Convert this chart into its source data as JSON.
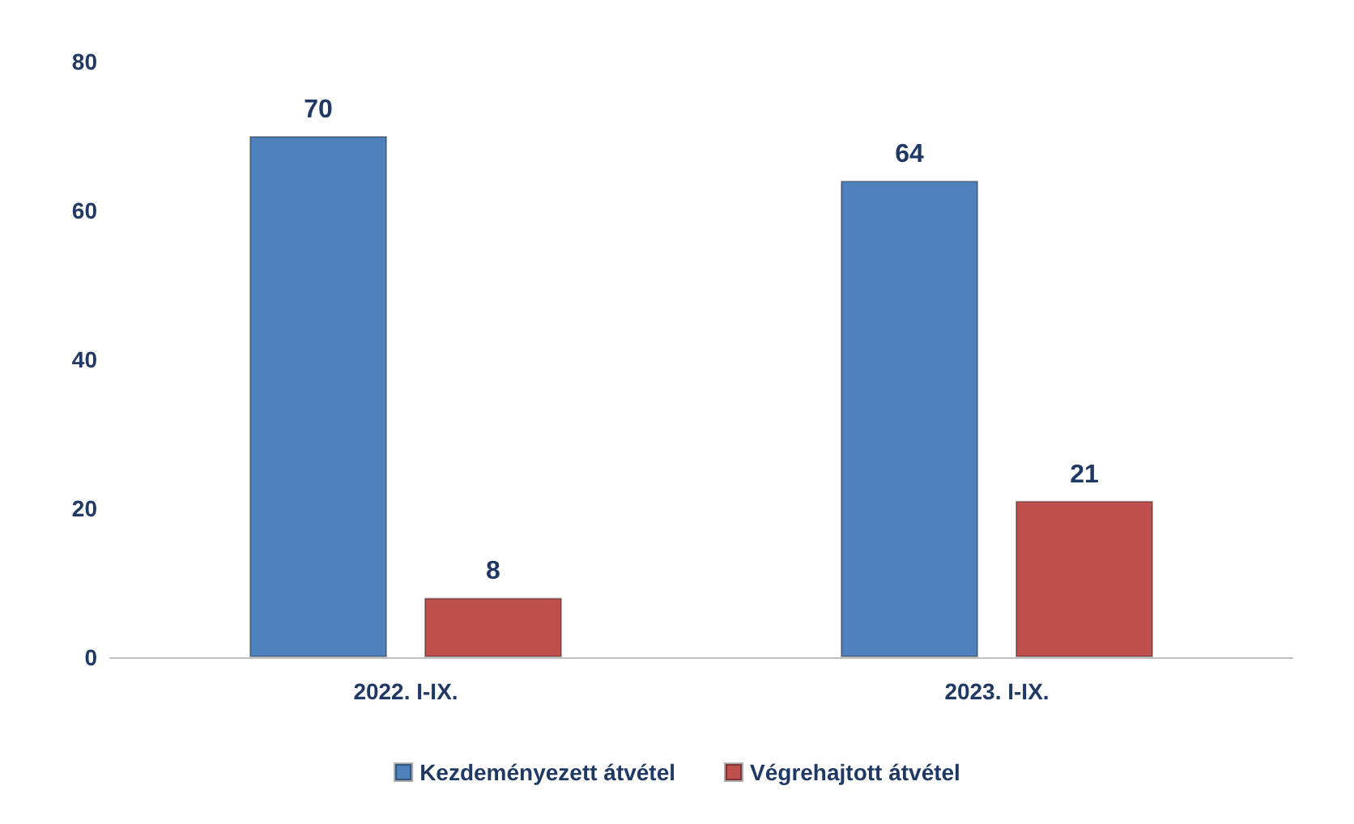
{
  "chart_data": {
    "type": "bar",
    "categories": [
      "2022. I-IX.",
      "2023. I-IX."
    ],
    "series": [
      {
        "name": "Kezdeményezett átvétel",
        "color": "#4f81bd",
        "values": [
          70,
          64
        ]
      },
      {
        "name": "Végrehajtott átvétel",
        "color": "#c0504d",
        "values": [
          8,
          21
        ]
      }
    ],
    "ylim": [
      0,
      80
    ],
    "yticks": [
      0,
      20,
      40,
      60,
      80
    ],
    "grid": false,
    "legend": "bottom",
    "data_labels": true
  }
}
